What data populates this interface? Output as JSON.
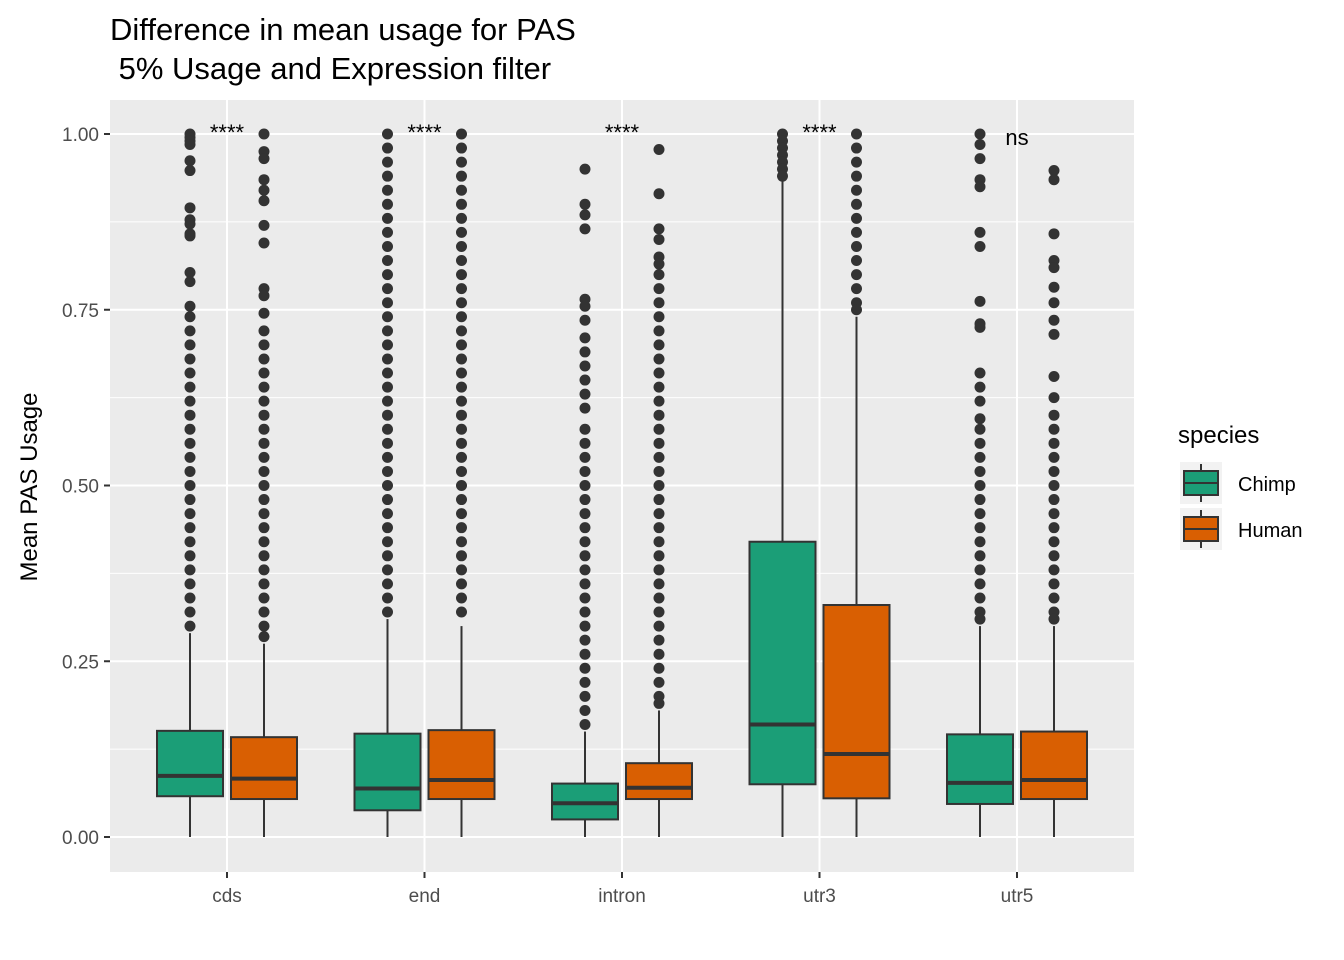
{
  "chart_data": {
    "type": "boxplot",
    "title": "Difference in mean usage for PAS",
    "subtitle": " 5% Usage and Expression filter",
    "xlabel": "",
    "ylabel": "Mean PAS Usage",
    "ylim": [
      -0.05,
      1.05
    ],
    "yticks": [
      0.0,
      0.25,
      0.5,
      0.75,
      1.0
    ],
    "ytick_labels": [
      "0.00",
      "0.25",
      "0.50",
      "0.75",
      "1.00"
    ],
    "categories": [
      "cds",
      "end",
      "intron",
      "utr3",
      "utr5"
    ],
    "grid": true,
    "legend": {
      "title": "species",
      "position": "right"
    },
    "colors": {
      "Chimp": "#1b9e77",
      "Human": "#d95f02",
      "panel": "#ebebeb",
      "grid": "#ffffff",
      "ink": "#333333"
    },
    "series": [
      {
        "name": "Chimp",
        "boxes": [
          {
            "min": 0.0,
            "q1": 0.058,
            "median": 0.087,
            "q3": 0.151,
            "whisker_high": 0.29,
            "outliers": [
              1.0,
              0.995,
              0.99,
              0.985,
              0.962,
              0.948,
              0.895,
              0.878,
              0.872,
              0.858,
              0.855,
              0.803,
              0.79,
              0.755,
              0.74,
              0.72,
              0.7,
              0.68,
              0.66,
              0.64,
              0.62,
              0.6,
              0.58,
              0.56,
              0.54,
              0.52,
              0.5,
              0.48,
              0.46,
              0.44,
              0.42,
              0.4,
              0.38,
              0.36,
              0.34,
              0.32,
              0.3
            ]
          },
          {
            "min": 0.0,
            "q1": 0.038,
            "median": 0.069,
            "q3": 0.147,
            "whisker_high": 0.31,
            "outliers": [
              1.0,
              0.98,
              0.96,
              0.94,
              0.92,
              0.9,
              0.88,
              0.86,
              0.84,
              0.82,
              0.8,
              0.78,
              0.76,
              0.74,
              0.72,
              0.7,
              0.68,
              0.66,
              0.64,
              0.62,
              0.6,
              0.58,
              0.56,
              0.54,
              0.52,
              0.5,
              0.48,
              0.46,
              0.44,
              0.42,
              0.4,
              0.38,
              0.36,
              0.34,
              0.32
            ]
          },
          {
            "min": 0.0,
            "q1": 0.025,
            "median": 0.048,
            "q3": 0.076,
            "whisker_high": 0.15,
            "outliers": [
              0.95,
              0.9,
              0.885,
              0.865,
              0.765,
              0.755,
              0.735,
              0.71,
              0.69,
              0.67,
              0.65,
              0.63,
              0.61,
              0.58,
              0.56,
              0.54,
              0.52,
              0.5,
              0.48,
              0.46,
              0.44,
              0.42,
              0.4,
              0.38,
              0.36,
              0.34,
              0.32,
              0.3,
              0.28,
              0.26,
              0.24,
              0.22,
              0.2,
              0.18,
              0.16
            ]
          },
          {
            "min": 0.0,
            "q1": 0.075,
            "median": 0.16,
            "q3": 0.42,
            "whisker_high": 0.935,
            "outliers": [
              1.0,
              0.99,
              0.98,
              0.97,
              0.96,
              0.95,
              0.94
            ]
          },
          {
            "min": 0.0,
            "q1": 0.047,
            "median": 0.077,
            "q3": 0.146,
            "whisker_high": 0.3,
            "outliers": [
              1.0,
              0.985,
              0.965,
              0.935,
              0.925,
              0.86,
              0.84,
              0.762,
              0.73,
              0.725,
              0.66,
              0.64,
              0.62,
              0.595,
              0.58,
              0.56,
              0.54,
              0.52,
              0.5,
              0.48,
              0.46,
              0.44,
              0.42,
              0.4,
              0.38,
              0.36,
              0.34,
              0.32,
              0.31
            ]
          }
        ]
      },
      {
        "name": "Human",
        "boxes": [
          {
            "min": 0.0,
            "q1": 0.054,
            "median": 0.083,
            "q3": 0.142,
            "whisker_high": 0.275,
            "outliers": [
              1.0,
              0.975,
              0.965,
              0.935,
              0.92,
              0.905,
              0.87,
              0.845,
              0.78,
              0.77,
              0.745,
              0.72,
              0.7,
              0.68,
              0.66,
              0.64,
              0.62,
              0.6,
              0.58,
              0.56,
              0.54,
              0.52,
              0.5,
              0.48,
              0.46,
              0.44,
              0.42,
              0.4,
              0.38,
              0.36,
              0.34,
              0.32,
              0.3,
              0.285
            ]
          },
          {
            "min": 0.0,
            "q1": 0.054,
            "median": 0.081,
            "q3": 0.152,
            "whisker_high": 0.3,
            "outliers": [
              1.0,
              0.98,
              0.96,
              0.94,
              0.92,
              0.9,
              0.88,
              0.86,
              0.84,
              0.82,
              0.8,
              0.78,
              0.76,
              0.74,
              0.72,
              0.7,
              0.68,
              0.66,
              0.64,
              0.62,
              0.6,
              0.58,
              0.56,
              0.54,
              0.52,
              0.5,
              0.48,
              0.46,
              0.44,
              0.42,
              0.4,
              0.38,
              0.36,
              0.34,
              0.32
            ]
          },
          {
            "min": 0.0,
            "q1": 0.054,
            "median": 0.07,
            "q3": 0.105,
            "whisker_high": 0.18,
            "outliers": [
              0.978,
              0.915,
              0.865,
              0.85,
              0.825,
              0.815,
              0.8,
              0.78,
              0.76,
              0.74,
              0.72,
              0.7,
              0.68,
              0.66,
              0.64,
              0.62,
              0.6,
              0.58,
              0.56,
              0.54,
              0.52,
              0.5,
              0.48,
              0.46,
              0.44,
              0.42,
              0.4,
              0.38,
              0.36,
              0.34,
              0.32,
              0.3,
              0.28,
              0.26,
              0.24,
              0.22,
              0.2,
              0.19
            ]
          },
          {
            "min": 0.0,
            "q1": 0.055,
            "median": 0.118,
            "q3": 0.33,
            "whisker_high": 0.74,
            "outliers": [
              1.0,
              0.98,
              0.96,
              0.94,
              0.92,
              0.9,
              0.88,
              0.86,
              0.84,
              0.82,
              0.8,
              0.78,
              0.76,
              0.75
            ]
          },
          {
            "min": 0.0,
            "q1": 0.054,
            "median": 0.081,
            "q3": 0.15,
            "whisker_high": 0.3,
            "outliers": [
              0.948,
              0.935,
              0.858,
              0.82,
              0.81,
              0.782,
              0.76,
              0.735,
              0.715,
              0.655,
              0.625,
              0.6,
              0.58,
              0.56,
              0.54,
              0.52,
              0.5,
              0.48,
              0.46,
              0.44,
              0.42,
              0.4,
              0.38,
              0.36,
              0.34,
              0.32,
              0.31
            ]
          }
        ]
      }
    ],
    "annotations": [
      {
        "category": "cds",
        "text": "****",
        "y": 1.0
      },
      {
        "category": "end",
        "text": "****",
        "y": 1.0
      },
      {
        "category": "intron",
        "text": "****",
        "y": 1.0
      },
      {
        "category": "utr3",
        "text": "****",
        "y": 1.0
      },
      {
        "category": "utr5",
        "text": "ns",
        "y": 1.0
      }
    ]
  }
}
